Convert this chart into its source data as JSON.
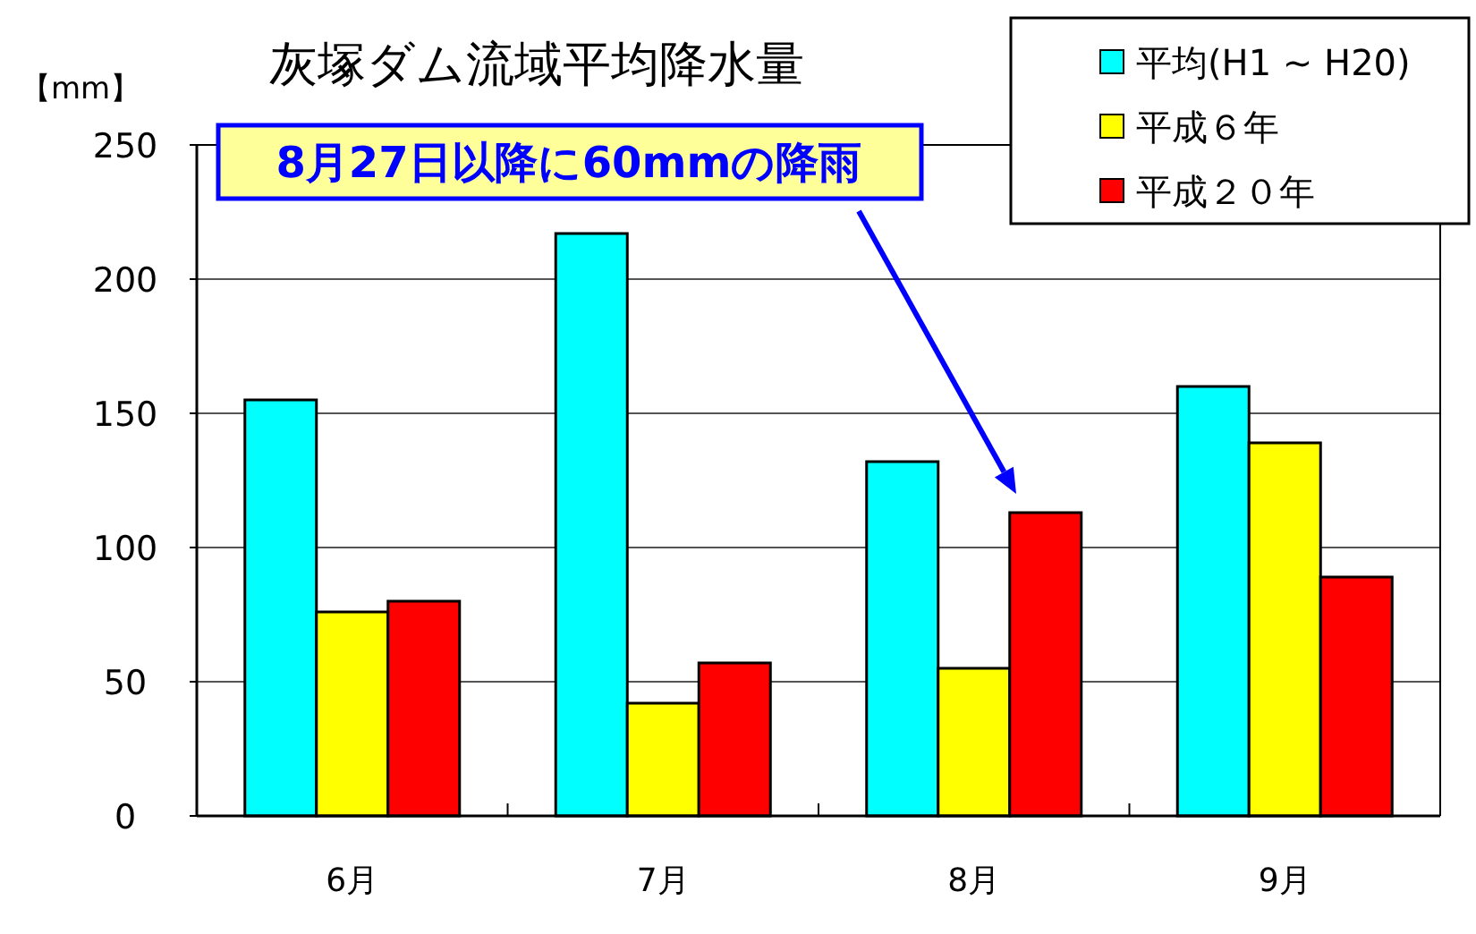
{
  "chart_data": {
    "type": "bar",
    "title": "灰塚ダム流域平均降水量",
    "ylabel": "【mm】",
    "categories": [
      "6月",
      "7月",
      "8月",
      "9月"
    ],
    "series": [
      {
        "name": "平均(H1 ~ H20)",
        "color": "#00ffff",
        "values": [
          155,
          217,
          132,
          160
        ]
      },
      {
        "name": "平成６年",
        "color": "#ffff00",
        "values": [
          76,
          42,
          55,
          139
        ]
      },
      {
        "name": "平成２０年",
        "color": "#ff0000",
        "values": [
          80,
          57,
          113,
          89
        ]
      }
    ],
    "ylim": [
      0,
      250
    ],
    "yticks": [
      0,
      50,
      100,
      150,
      200,
      250
    ],
    "grid": "y",
    "legend": "top right",
    "annotations": [
      "8月27日以降に60mmの降雨"
    ]
  }
}
